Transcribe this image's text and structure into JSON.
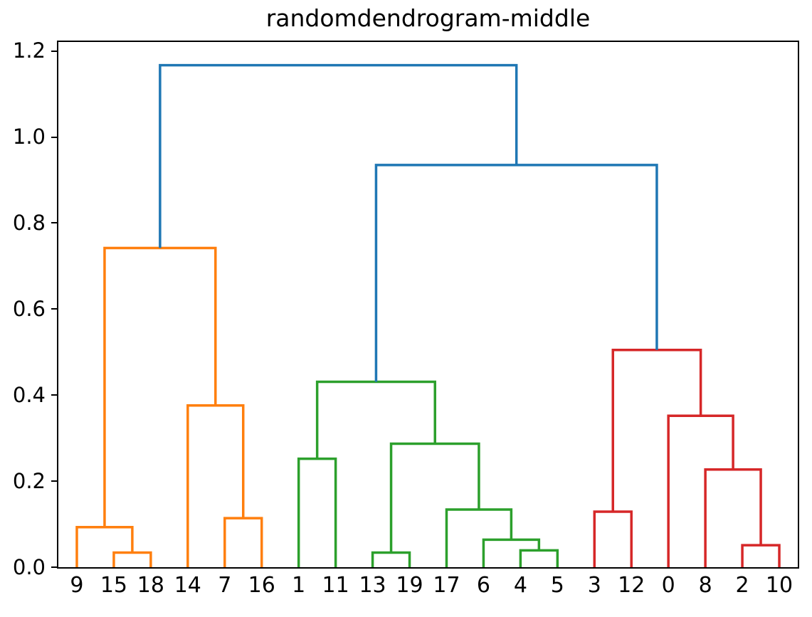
{
  "title": "randomdendrogram-middle",
  "chart_data": {
    "type": "dendrogram",
    "title": "randomdendrogram-middle",
    "xlabel": "",
    "ylabel": "",
    "xlim": [
      0,
      200
    ],
    "ylim": [
      0,
      1.221
    ],
    "grid": false,
    "yticks": [
      {
        "value": 0.0,
        "label": "0.0"
      },
      {
        "value": 0.2,
        "label": "0.2"
      },
      {
        "value": 0.4,
        "label": "0.4"
      },
      {
        "value": 0.6,
        "label": "0.6"
      },
      {
        "value": 0.8,
        "label": "0.8"
      },
      {
        "value": 1.0,
        "label": "1.0"
      },
      {
        "value": 1.2,
        "label": "1.2"
      }
    ],
    "leaves": [
      {
        "label": "9",
        "x": 5
      },
      {
        "label": "15",
        "x": 15
      },
      {
        "label": "18",
        "x": 25
      },
      {
        "label": "14",
        "x": 35
      },
      {
        "label": "7",
        "x": 45
      },
      {
        "label": "16",
        "x": 55
      },
      {
        "label": "1",
        "x": 65
      },
      {
        "label": "11",
        "x": 75
      },
      {
        "label": "13",
        "x": 85
      },
      {
        "label": "19",
        "x": 95
      },
      {
        "label": "17",
        "x": 105
      },
      {
        "label": "6",
        "x": 115
      },
      {
        "label": "4",
        "x": 125
      },
      {
        "label": "5",
        "x": 135
      },
      {
        "label": "3",
        "x": 145
      },
      {
        "label": "12",
        "x": 155
      },
      {
        "label": "0",
        "x": 165
      },
      {
        "label": "8",
        "x": 175
      },
      {
        "label": "2",
        "x": 185
      },
      {
        "label": "10",
        "x": 195
      }
    ],
    "palette": {
      "blue": "#1f77b4",
      "orange": "#ff7f0e",
      "green": "#2ca02c",
      "red": "#d62728"
    },
    "line_width": 3.5,
    "links": [
      {
        "x1": 15,
        "y1": 0,
        "x2": 25,
        "y2": 0,
        "h": 0.034,
        "color": "orange"
      },
      {
        "x1": 5,
        "y1": 0,
        "x2": 20,
        "y2": 0.034,
        "h": 0.093,
        "color": "orange"
      },
      {
        "x1": 45,
        "y1": 0,
        "x2": 55,
        "y2": 0,
        "h": 0.114,
        "color": "orange"
      },
      {
        "x1": 35,
        "y1": 0,
        "x2": 50,
        "y2": 0.114,
        "h": 0.376,
        "color": "orange"
      },
      {
        "x1": 12.5,
        "y1": 0.093,
        "x2": 42.5,
        "y2": 0.376,
        "h": 0.742,
        "color": "orange"
      },
      {
        "x1": 65,
        "y1": 0,
        "x2": 75,
        "y2": 0,
        "h": 0.252,
        "color": "green"
      },
      {
        "x1": 85,
        "y1": 0,
        "x2": 95,
        "y2": 0,
        "h": 0.034,
        "color": "green"
      },
      {
        "x1": 125,
        "y1": 0,
        "x2": 135,
        "y2": 0,
        "h": 0.039,
        "color": "green"
      },
      {
        "x1": 115,
        "y1": 0,
        "x2": 130,
        "y2": 0.039,
        "h": 0.064,
        "color": "green"
      },
      {
        "x1": 105,
        "y1": 0,
        "x2": 122.5,
        "y2": 0.064,
        "h": 0.134,
        "color": "green"
      },
      {
        "x1": 90,
        "y1": 0.034,
        "x2": 113.75,
        "y2": 0.134,
        "h": 0.287,
        "color": "green"
      },
      {
        "x1": 70,
        "y1": 0.252,
        "x2": 101.875,
        "y2": 0.287,
        "h": 0.431,
        "color": "green"
      },
      {
        "x1": 185,
        "y1": 0,
        "x2": 195,
        "y2": 0,
        "h": 0.051,
        "color": "red"
      },
      {
        "x1": 175,
        "y1": 0,
        "x2": 190,
        "y2": 0.051,
        "h": 0.227,
        "color": "red"
      },
      {
        "x1": 165,
        "y1": 0,
        "x2": 182.5,
        "y2": 0.227,
        "h": 0.352,
        "color": "red"
      },
      {
        "x1": 145,
        "y1": 0,
        "x2": 155,
        "y2": 0,
        "h": 0.129,
        "color": "red"
      },
      {
        "x1": 150,
        "y1": 0.129,
        "x2": 173.75,
        "y2": 0.352,
        "h": 0.505,
        "color": "red"
      },
      {
        "x1": 85.9375,
        "y1": 0.431,
        "x2": 161.875,
        "y2": 0.505,
        "h": 0.935,
        "color": "blue"
      },
      {
        "x1": 27.5,
        "y1": 0.742,
        "x2": 123.90625,
        "y2": 0.935,
        "h": 1.167,
        "color": "blue"
      }
    ]
  }
}
